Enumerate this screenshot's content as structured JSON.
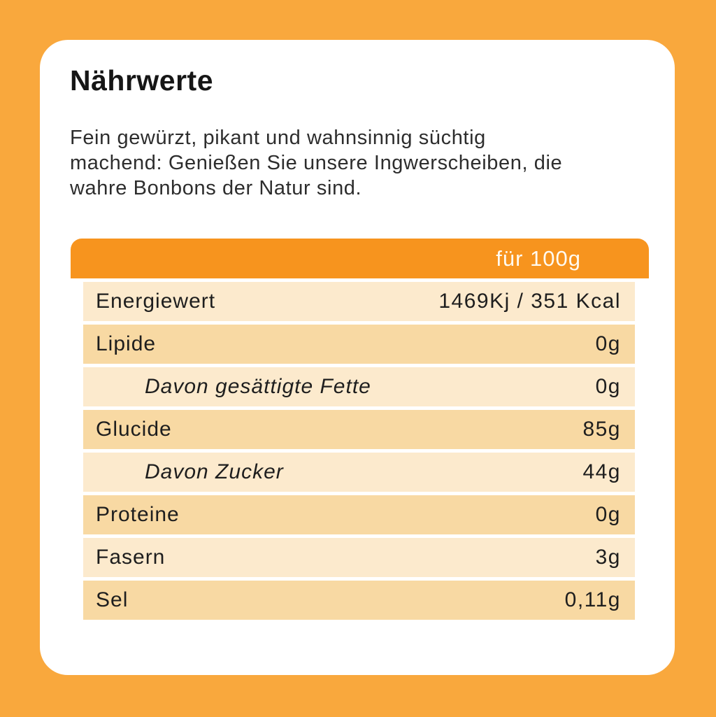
{
  "page": {
    "background_color": "#F9A83D",
    "card_color": "#FFFFFF",
    "text_color": "#1E1E1E"
  },
  "section": {
    "title": "Nährwerte",
    "description": "Fein gewürzt, pikant und wahnsinnig süchtig machend: Genießen Sie unsere Ingwerscheiben, die wahre Bonbons der Natur sind.",
    "description_lines": [
      "Fein gewürzt, pikant und wahnsinnig süchtig",
      "machend: Genießen Sie unsere Ingwerscheiben, die",
      "wahre Bonbons der Natur sind."
    ]
  },
  "nutrition_table": {
    "header": {
      "label": "für 100g",
      "background_color": "#F7941E",
      "text_color": "#FFFAF0"
    },
    "row_colors": {
      "light": "#FCEACD",
      "dark": "#F8D9A3"
    },
    "rows": [
      {
        "label": "Energiewert",
        "value": "1469Kj / 351 Kcal",
        "indent": false,
        "shade": "light"
      },
      {
        "label": "Lipide",
        "value": "0g",
        "indent": false,
        "shade": "dark"
      },
      {
        "label": "Davon gesättigte Fette",
        "value": "0g",
        "indent": true,
        "shade": "light"
      },
      {
        "label": "Glucide",
        "value": "85g",
        "indent": false,
        "shade": "dark"
      },
      {
        "label": "Davon Zucker",
        "value": "44g",
        "indent": true,
        "shade": "light"
      },
      {
        "label": "Proteine",
        "value": "0g",
        "indent": false,
        "shade": "dark"
      },
      {
        "label": "Fasern",
        "value": "3g",
        "indent": false,
        "shade": "light"
      },
      {
        "label": "Sel",
        "value": "0,11g",
        "indent": false,
        "shade": "dark"
      }
    ]
  }
}
